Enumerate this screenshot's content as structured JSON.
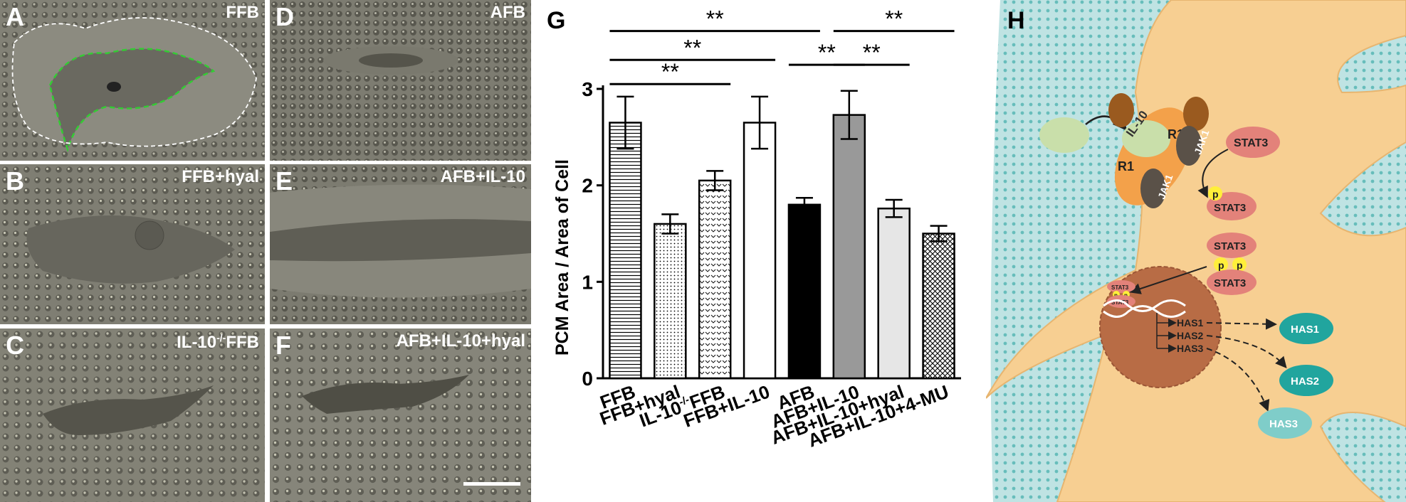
{
  "colors": {
    "micrograph_bg": "#7d7c70",
    "cell_body": "#5f5c52",
    "green_outline": "#33cc33",
    "white_outline": "#ffffff",
    "matrix": "#bfe3e3",
    "dots": "#1f9e9a",
    "cell": "#f7cf92",
    "nucleus": "#b86c45",
    "stat3": "#e3827a",
    "jak1": "#5a5148",
    "receptor": "#f3a14a",
    "il10": "#c9dfaa",
    "phospho": "#ffef3a",
    "has_enzyme": "#21a59e"
  },
  "panels": [
    {
      "letter": "A",
      "caption": "FFB"
    },
    {
      "letter": "B",
      "caption": "FFB+hyal"
    },
    {
      "letter": "C",
      "caption": "IL-10",
      "caption_sup": "-/-",
      "caption_tail": "FFB"
    },
    {
      "letter": "D",
      "caption": "AFB"
    },
    {
      "letter": "E",
      "caption": "AFB+IL-10"
    },
    {
      "letter": "F",
      "caption": "AFB+IL-10+hyal"
    }
  ],
  "chart_data": {
    "type": "bar",
    "panel_letter": "G",
    "ylabel": "PCM Area / Area of Cell",
    "ylim": [
      0,
      3
    ],
    "yticks": [
      0,
      1,
      2,
      3
    ],
    "categories": [
      "FFB",
      "FFB+hyal",
      "IL-10-/-FFB",
      "FFB+IL-10",
      "AFB",
      "AFB+IL-10",
      "AFB+IL-10+hyal",
      "AFB+IL-10+4-MU"
    ],
    "category_labels": [
      {
        "main": "FFB"
      },
      {
        "main": "FFB+hyal"
      },
      {
        "main": "IL-10",
        "sup": "-/-",
        "tail": "FFB"
      },
      {
        "main": "FFB+IL-10"
      },
      {
        "main": "AFB"
      },
      {
        "main": "AFB+IL-10"
      },
      {
        "main": "AFB+IL-10+hyal"
      },
      {
        "main": "AFB+IL-10+4-MU"
      }
    ],
    "values": [
      2.65,
      1.6,
      2.05,
      2.65,
      1.8,
      2.73,
      1.76,
      1.5
    ],
    "errors": [
      0.27,
      0.1,
      0.1,
      0.27,
      0.07,
      0.25,
      0.09,
      0.08
    ],
    "fills": [
      "hlines",
      "dots",
      "chevron",
      "white",
      "black",
      "gray",
      "lightgray",
      "crosshatch"
    ],
    "significance": [
      {
        "from": 0,
        "to": 4,
        "label": "**",
        "level": 3.6
      },
      {
        "from": 0,
        "to": 3,
        "label": "**",
        "level": 3.3
      },
      {
        "from": 0,
        "to": 2,
        "label": "**",
        "level": 3.05
      },
      {
        "from": 4,
        "to": 5,
        "label": "**",
        "level": 3.25
      },
      {
        "from": 5,
        "to": 6,
        "label": "**",
        "level": 3.25
      },
      {
        "from": 5,
        "to": 7,
        "label": "**",
        "level": 3.6
      }
    ]
  },
  "diagram": {
    "panel_letter": "H",
    "il10_label": "IL-10",
    "r1_label": "R1",
    "jak1_label": "JAK1",
    "stat3_label": "STAT3",
    "p_label": "p",
    "has_genes": [
      "HAS1",
      "HAS2",
      "HAS3"
    ],
    "has_enzymes": [
      "HAS1",
      "HAS2",
      "HAS3"
    ]
  }
}
